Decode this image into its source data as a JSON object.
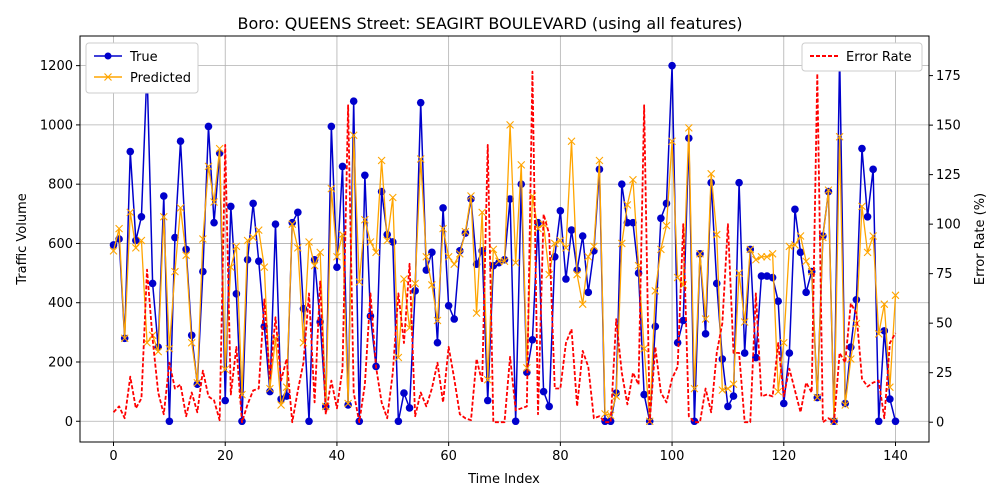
{
  "chart_data": {
    "type": "line",
    "title": "Boro: QUEENS Street: SEAGIRT BOULEVARD (using all features)",
    "xlabel": "Time Index",
    "ylabel_left": "Traffic Volume",
    "ylabel_right": "Error Rate (%)",
    "xlim": [
      -6,
      146
    ],
    "ylim_left": [
      -70,
      1300
    ],
    "ylim_right": [
      -10,
      195
    ],
    "xticks": [
      0,
      20,
      40,
      60,
      80,
      100,
      120,
      140
    ],
    "yticks_left": [
      0,
      200,
      400,
      600,
      800,
      1000,
      1200
    ],
    "yticks_right": [
      0,
      25,
      50,
      75,
      100,
      125,
      150,
      175
    ],
    "grid": true,
    "legend_left_position": "upper-left",
    "legend_right_position": "upper-right",
    "colors": {
      "true": "#0000cc",
      "predicted": "#ffa500",
      "error": "#ff0000",
      "grid": "#b0b0b0"
    },
    "series": [
      {
        "name": "True",
        "axis": "left",
        "style": "solid-circle",
        "values": [
          595,
          615,
          280,
          910,
          610,
          690,
          1190,
          465,
          250,
          760,
          0,
          620,
          945,
          580,
          290,
          125,
          505,
          995,
          670,
          905,
          70,
          725,
          430,
          0,
          545,
          735,
          540,
          320,
          100,
          665,
          75,
          85,
          670,
          705,
          380,
          0,
          545,
          335,
          50,
          995,
          520,
          860,
          55,
          1080,
          0,
          830,
          355,
          185,
          775,
          630,
          605,
          0,
          95,
          45,
          440,
          1075,
          510,
          570,
          265,
          720,
          390,
          345,
          575,
          635,
          750,
          530,
          575,
          70,
          525,
          535,
          545,
          750,
          0,
          800,
          165,
          275,
          670,
          100,
          50,
          555,
          710,
          480,
          645,
          510,
          625,
          435,
          575,
          850,
          0,
          0,
          95,
          800,
          670,
          670,
          500,
          90,
          0,
          320,
          685,
          735,
          1200,
          265,
          340,
          955,
          0,
          565,
          295,
          805,
          465,
          210,
          50,
          85,
          805,
          230,
          580,
          215,
          490,
          490,
          485,
          405,
          60,
          230,
          715,
          570,
          435,
          505,
          80,
          625,
          775,
          0,
          1240,
          60,
          250,
          410,
          920,
          690,
          850,
          0,
          305,
          75,
          0
        ]
      },
      {
        "name": "Predicted",
        "axis": "left",
        "style": "solid-x",
        "values": [
          575,
          650,
          280,
          705,
          585,
          610,
          265,
          290,
          235,
          690,
          245,
          505,
          720,
          560,
          265,
          130,
          615,
          860,
          740,
          920,
          175,
          520,
          590,
          90,
          610,
          620,
          645,
          520,
          110,
          280,
          55,
          115,
          665,
          585,
          265,
          605,
          525,
          570,
          50,
          785,
          555,
          630,
          60,
          965,
          470,
          680,
          605,
          570,
          880,
          610,
          755,
          215,
          480,
          315,
          465,
          885,
          555,
          460,
          340,
          650,
          555,
          530,
          565,
          640,
          760,
          365,
          705,
          140,
          580,
          540,
          540,
          1000,
          535,
          865,
          180,
          760,
          650,
          665,
          495,
          600,
          610,
          585,
          945,
          495,
          395,
          555,
          590,
          880,
          25,
          20,
          85,
          600,
          730,
          815,
          525,
          245,
          0,
          440,
          580,
          660,
          945,
          485,
          460,
          990,
          110,
          565,
          345,
          835,
          630,
          105,
          110,
          125,
          500,
          335,
          580,
          545,
          555,
          555,
          565,
          100,
          265,
          590,
          595,
          625,
          540,
          505,
          80,
          620,
          780,
          0,
          960,
          55,
          210,
          330,
          725,
          570,
          625,
          295,
          395,
          115,
          425
        ]
      },
      {
        "name": "Error Rate",
        "axis": "right",
        "style": "dashed",
        "values": [
          5,
          8,
          2,
          23,
          7,
          12,
          77,
          42,
          15,
          4,
          30,
          17,
          19,
          3,
          15,
          5,
          26,
          13,
          11,
          1,
          140,
          14,
          38,
          0,
          9,
          16,
          17,
          62,
          22,
          53,
          21,
          32,
          0,
          16,
          30,
          65,
          10,
          71,
          4,
          21,
          7,
          27,
          160,
          15,
          0,
          19,
          65,
          28,
          10,
          2,
          25,
          65,
          40,
          80,
          3,
          15,
          8,
          17,
          30,
          10,
          38,
          22,
          4,
          2,
          1,
          32,
          20,
          140,
          0,
          0,
          0,
          33,
          6,
          7,
          8,
          177,
          4,
          105,
          95,
          17,
          17,
          40,
          47,
          8,
          36,
          28,
          2,
          3,
          0,
          0,
          52,
          25,
          9,
          25,
          19,
          160,
          0,
          38,
          15,
          10,
          22,
          28,
          100,
          3,
          0,
          0,
          17,
          5,
          35,
          50,
          100,
          35,
          35,
          0,
          0,
          65,
          13,
          14,
          13,
          40,
          13,
          27,
          16,
          5,
          20,
          15,
          176,
          0,
          2,
          0,
          35,
          30,
          60,
          55,
          22,
          18,
          20,
          21,
          2,
          40,
          45
        ]
      }
    ]
  }
}
